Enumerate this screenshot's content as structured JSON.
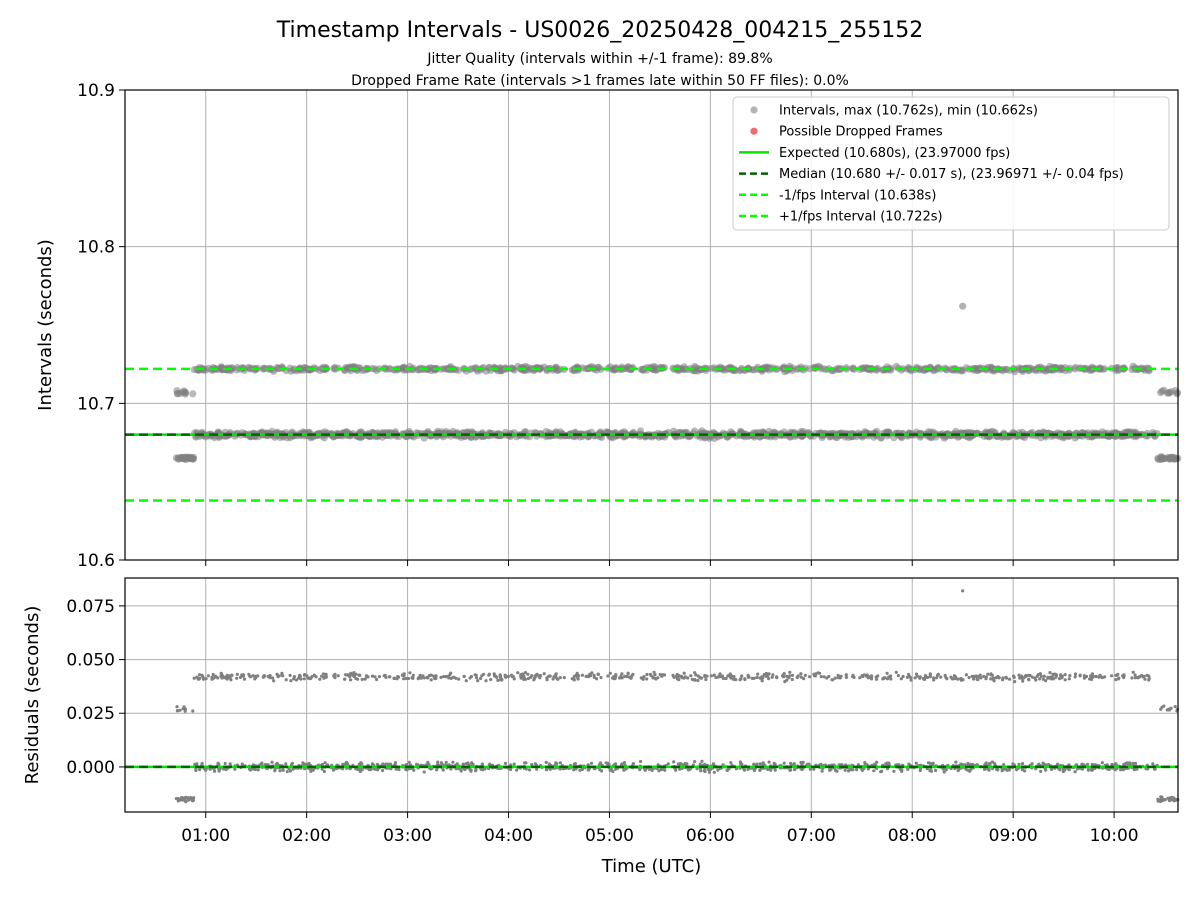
{
  "figure": {
    "title": "Timestamp Intervals - US0026_20250428_004215_255152",
    "subtitle_1": "Jitter Quality (intervals within +/-1 frame): 89.8%",
    "subtitle_2": "Dropped Frame Rate (intervals >1 frames late within 50 FF files): 0.0%"
  },
  "colors": {
    "points": "#808080",
    "dropped": "#f05050",
    "expected": "#00e600",
    "median": "#006400",
    "bounds": "#00ff00",
    "grid": "#b0b0b0"
  },
  "chart_data": [
    {
      "type": "scatter",
      "panel": "top",
      "ylabel": "Intervals (seconds)",
      "xlabel": "",
      "x_unit": "hours UTC",
      "xlim": [
        "00:12",
        "10:38"
      ],
      "ylim": [
        10.6,
        10.9
      ],
      "yticks": [
        "10.6",
        "10.7",
        "10.8",
        "10.9"
      ],
      "xticks": [
        "01:00",
        "02:00",
        "03:00",
        "04:00",
        "05:00",
        "06:00",
        "07:00",
        "08:00",
        "09:00",
        "10:00"
      ],
      "grid": true,
      "legend_position": "top-right",
      "legend": [
        "Intervals, max (10.762s), min (10.662s)",
        "Possible Dropped Frames",
        "Expected (10.680s), (23.97000 fps)",
        "Median (10.680 +/- 0.017 s), (23.96971 +/- 0.04 fps)",
        "-1/fps Interval (10.638s)",
        "+1/fps Interval (10.722s)"
      ],
      "reference_lines": {
        "expected": 10.68,
        "median": 10.68,
        "minus_one_fps": 10.638,
        "plus_one_fps": 10.722
      },
      "series": [
        {
          "name": "Intervals, max (10.762s), min (10.662s)",
          "band_centers": [
            10.68,
            10.722
          ],
          "x_range": [
            "00:53",
            "10:26"
          ]
        },
        {
          "name": "Intervals, max (10.762s), min (10.662s)",
          "start_segment": {
            "x_range": [
              "00:42",
              "00:53"
            ],
            "values": [
              10.665,
              10.707
            ]
          }
        },
        {
          "name": "Intervals, max (10.762s), min (10.662s)",
          "end_segment": {
            "x_range": [
              "10:26",
              "10:38"
            ],
            "values": [
              10.665,
              10.707
            ]
          }
        },
        {
          "name": "Intervals, max (10.762s), min (10.662s)",
          "outlier": {
            "x": "08:30",
            "y": 10.762
          }
        }
      ]
    },
    {
      "type": "scatter",
      "panel": "bottom",
      "ylabel": "Residuals (seconds)",
      "xlabel": "Time (UTC)",
      "xlim": [
        "00:12",
        "10:38"
      ],
      "ylim": [
        -0.021,
        0.088
      ],
      "yticks": [
        "0.000",
        "0.025",
        "0.050",
        "0.075"
      ],
      "xticks": [
        "01:00",
        "02:00",
        "03:00",
        "04:00",
        "05:00",
        "06:00",
        "07:00",
        "08:00",
        "09:00",
        "10:00"
      ],
      "grid": true,
      "reference_lines": {
        "zero": 0.0
      },
      "series": [
        {
          "band_centers": [
            0.0,
            0.042
          ],
          "x_range": [
            "00:53",
            "10:26"
          ]
        },
        {
          "start_segment": {
            "x_range": [
              "00:42",
              "00:53"
            ],
            "values": [
              -0.015,
              0.027
            ]
          }
        },
        {
          "end_segment": {
            "x_range": [
              "10:26",
              "10:38"
            ],
            "values": [
              -0.015,
              0.027
            ]
          }
        },
        {
          "outlier": {
            "x": "08:30",
            "y": 0.082
          }
        }
      ]
    }
  ]
}
